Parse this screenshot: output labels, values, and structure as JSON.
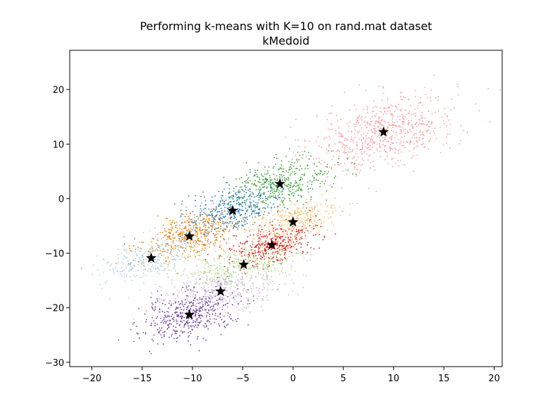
{
  "chart_data": {
    "type": "scatter",
    "title": "Performing k-means with K=10 on rand.mat dataset",
    "subtitle": "kMedoid",
    "xlabel": "",
    "ylabel": "",
    "xlim": [
      -22.2,
      20.8
    ],
    "ylim": [
      -30.8,
      27.2
    ],
    "grid": false,
    "xticks": [
      -20,
      -15,
      -10,
      -5,
      0,
      5,
      10,
      15,
      20
    ],
    "xtick_labels": [
      "−20",
      "−15",
      "−10",
      "−5",
      "0",
      "5",
      "10",
      "15",
      "20"
    ],
    "yticks": [
      -30,
      -20,
      -10,
      0,
      10,
      20
    ],
    "ytick_labels": [
      "−30",
      "−20",
      "−10",
      "0",
      "10",
      "20"
    ],
    "clusters": [
      {
        "color": "#fb9a99",
        "centroid": [
          9.0,
          12.2
        ],
        "spread": [
          3.6,
          3.6
        ],
        "count": 700
      },
      {
        "color": "#33a02c",
        "centroid": [
          -1.3,
          2.7
        ],
        "spread": [
          2.6,
          2.4
        ],
        "count": 420
      },
      {
        "color": "#1f78b4",
        "centroid": [
          -6.0,
          -2.2
        ],
        "spread": [
          2.6,
          2.3
        ],
        "count": 420
      },
      {
        "color": "#fdbf6f",
        "centroid": [
          0.0,
          -4.3
        ],
        "spread": [
          2.4,
          2.3
        ],
        "count": 380
      },
      {
        "color": "#ff7f00",
        "centroid": [
          -10.3,
          -6.9
        ],
        "spread": [
          2.4,
          2.2
        ],
        "count": 420
      },
      {
        "color": "#e31a1c",
        "centroid": [
          -2.1,
          -8.5
        ],
        "spread": [
          2.0,
          1.9
        ],
        "count": 380
      },
      {
        "color": "#a6cee3",
        "centroid": [
          -14.1,
          -10.9
        ],
        "spread": [
          2.5,
          2.2
        ],
        "count": 300
      },
      {
        "color": "#b2df8a",
        "centroid": [
          -4.9,
          -12.1
        ],
        "spread": [
          2.8,
          1.9
        ],
        "count": 400
      },
      {
        "color": "#cab2d6",
        "centroid": [
          -7.2,
          -17.0
        ],
        "spread": [
          3.2,
          2.2
        ],
        "count": 400
      },
      {
        "color": "#6a3d9a",
        "centroid": [
          -10.3,
          -21.3
        ],
        "spread": [
          2.5,
          2.3
        ],
        "count": 450
      }
    ],
    "medoid_marker": {
      "shape": "star",
      "color": "#000000"
    }
  }
}
